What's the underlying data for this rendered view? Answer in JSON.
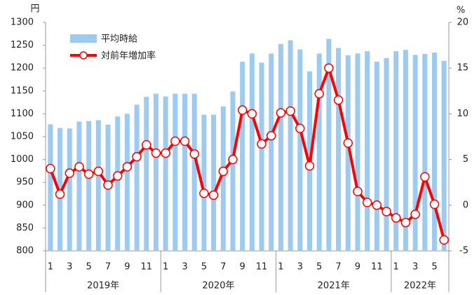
{
  "chart_data": {
    "type": "bar-line",
    "y_unit": "円",
    "y2_unit": "%",
    "categories": [
      "1",
      null,
      "3",
      null,
      "5",
      null,
      "7",
      null,
      "9",
      null,
      "11",
      null,
      "1",
      null,
      "3",
      null,
      "5",
      null,
      "7",
      null,
      "9",
      null,
      "11",
      null,
      "1",
      null,
      "3",
      null,
      "5",
      null,
      "7",
      null,
      "9",
      null,
      "11",
      null,
      "1",
      null,
      "3",
      null,
      "5",
      null
    ],
    "groups": [
      {
        "label": "2019年",
        "size": 12
      },
      {
        "label": "2020年",
        "size": 12
      },
      {
        "label": "2021年",
        "size": 12
      },
      {
        "label": "2022年",
        "size": 6
      }
    ],
    "series": [
      {
        "name": "平均時給",
        "type": "bar",
        "color": "#9dcaf2",
        "values": [
          1077,
          1069,
          1068,
          1083,
          1084,
          1086,
          1076,
          1094,
          1100,
          1120,
          1137,
          1144,
          1138,
          1144,
          1144,
          1144,
          1098,
          1098,
          1116,
          1149,
          1214,
          1232,
          1212,
          1232,
          1253,
          1261,
          1241,
          1193,
          1232,
          1264,
          1244,
          1228,
          1232,
          1237,
          1214,
          1222,
          1237,
          1240,
          1229,
          1231,
          1234,
          1216
        ]
      },
      {
        "name": "対前年増加率",
        "type": "line",
        "axis": "y2",
        "color": "#ff0000",
        "values": [
          4.0,
          1.2,
          3.5,
          4.2,
          3.4,
          3.7,
          2.2,
          3.2,
          4.2,
          5.3,
          6.6,
          5.7,
          5.7,
          7.0,
          7.0,
          5.6,
          1.3,
          1.1,
          3.7,
          5.0,
          10.4,
          10.0,
          6.7,
          7.6,
          10.1,
          10.3,
          8.4,
          4.3,
          12.2,
          15.0,
          11.5,
          6.8,
          1.5,
          0.3,
          0.0,
          -0.7,
          -1.4,
          -1.9,
          -1.0,
          3.1,
          0.1,
          -3.8
        ]
      }
    ],
    "ylim": [
      800,
      1300
    ],
    "yticks": [
      800,
      850,
      900,
      950,
      1000,
      1050,
      1100,
      1150,
      1200,
      1250,
      1300
    ],
    "y2lim": [
      -5,
      20
    ],
    "y2ticks": [
      -5,
      0,
      5,
      10,
      15,
      20
    ]
  }
}
